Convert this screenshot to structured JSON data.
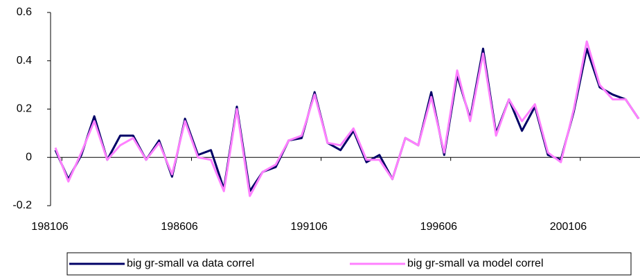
{
  "chart_data": {
    "type": "line",
    "categories": [
      "198106",
      null,
      null,
      null,
      null,
      null,
      null,
      null,
      null,
      null,
      "198606",
      null,
      null,
      null,
      null,
      null,
      null,
      null,
      null,
      null,
      "199106",
      null,
      null,
      null,
      null,
      null,
      null,
      null,
      null,
      null,
      "199606",
      null,
      null,
      null,
      null,
      null,
      null,
      null,
      null,
      null,
      "200106",
      null,
      null,
      null,
      null,
      null
    ],
    "series": [
      {
        "name": "big gr-small va data correl",
        "color": "#000066",
        "values": [
          0.03,
          -0.09,
          0.01,
          0.17,
          -0.01,
          0.09,
          0.09,
          -0.01,
          0.07,
          -0.08,
          0.16,
          0.01,
          0.03,
          -0.13,
          0.21,
          -0.14,
          -0.06,
          -0.04,
          0.07,
          0.08,
          0.27,
          0.06,
          0.03,
          0.11,
          -0.02,
          0.01,
          -0.09,
          0.08,
          0.05,
          0.27,
          0.01,
          0.34,
          0.16,
          0.45,
          0.1,
          0.24,
          0.11,
          0.21,
          0.01,
          -0.01,
          0.19,
          0.45,
          0.29,
          0.26,
          0.24,
          0.16
        ]
      },
      {
        "name": "big gr-small va model correl",
        "color": "#ff80ff",
        "values": [
          0.04,
          -0.1,
          0.02,
          0.15,
          -0.01,
          0.05,
          0.08,
          -0.01,
          0.06,
          -0.07,
          0.15,
          0.0,
          -0.01,
          -0.14,
          0.2,
          -0.16,
          -0.06,
          -0.03,
          0.07,
          0.09,
          0.26,
          0.06,
          0.05,
          0.12,
          -0.01,
          -0.01,
          -0.09,
          0.08,
          0.05,
          0.25,
          0.02,
          0.36,
          0.15,
          0.43,
          0.09,
          0.24,
          0.15,
          0.22,
          0.02,
          -0.02,
          0.2,
          0.48,
          0.3,
          0.24,
          0.24,
          0.16
        ]
      }
    ],
    "ylim": [
      -0.2,
      0.6
    ],
    "yticks": [
      -0.2,
      0,
      0.2,
      0.4,
      0.6
    ],
    "legend": "bottom"
  }
}
